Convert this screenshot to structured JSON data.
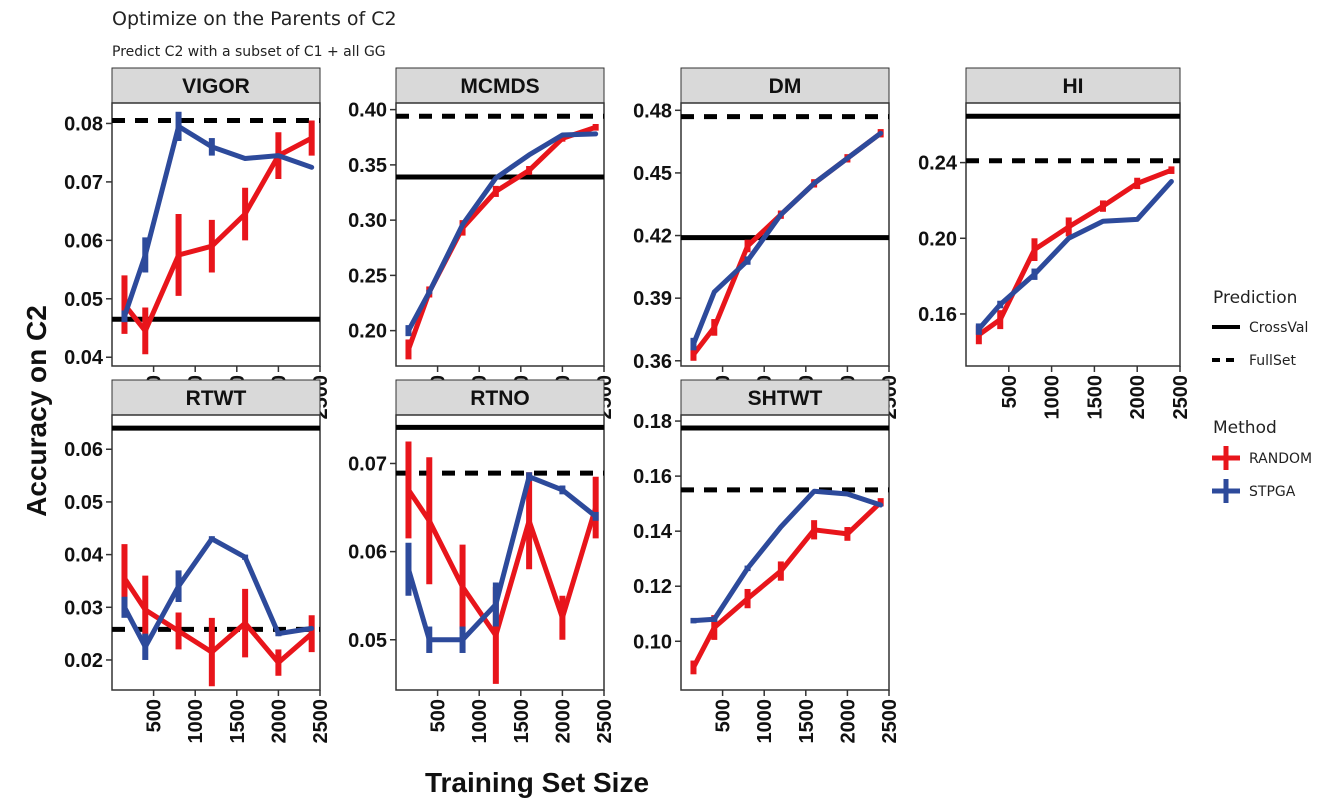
{
  "figure": {
    "title": "Optimize on the Parents of C2",
    "subtitle": "Predict C2 with a subset of C1 + all GG",
    "xlabel": "Training Set Size",
    "ylabel": "Accuracy on C2",
    "legend": {
      "prediction_title": "Prediction",
      "prediction_items": [
        {
          "label": "CrossVal",
          "style": "solid"
        },
        {
          "label": "FullSet",
          "style": "dashed"
        }
      ],
      "method_title": "Method",
      "method_items": [
        {
          "label": "RANDOM",
          "color": "#e8151b"
        },
        {
          "label": "STPGA",
          "color": "#2d4a9b"
        }
      ]
    }
  },
  "chart_data": [
    {
      "type": "line",
      "panel": "VIGOR",
      "x": [
        150,
        400,
        800,
        1200,
        1600,
        2000,
        2400
      ],
      "xlim": [
        0,
        2500
      ],
      "xticks": [
        500,
        1000,
        1500,
        2000,
        2500
      ],
      "ylim": [
        0.0385,
        0.0835
      ],
      "yticks": [
        0.04,
        0.05,
        0.06,
        0.07,
        0.08
      ],
      "ytick_labels": [
        "0.04",
        "0.05",
        "0.06",
        "0.07",
        "0.08"
      ],
      "crossval": 0.0465,
      "fullset": 0.0805,
      "series": [
        {
          "name": "RANDOM",
          "values": [
            0.049,
            0.0445,
            0.0575,
            0.059,
            0.0645,
            0.0745,
            0.0775
          ],
          "err": [
            0.005,
            0.004,
            0.007,
            0.0045,
            0.0045,
            0.004,
            0.003
          ]
        },
        {
          "name": "STPGA",
          "values": [
            0.047,
            0.0575,
            0.0795,
            0.076,
            0.074,
            0.0745,
            0.0725
          ],
          "err": [
            0.001,
            0.003,
            0.0025,
            0.0015,
            0,
            0,
            0
          ]
        }
      ]
    },
    {
      "type": "line",
      "panel": "MCMDS",
      "x": [
        150,
        400,
        800,
        1200,
        1600,
        2000,
        2400
      ],
      "xlim": [
        0,
        2500
      ],
      "xticks": [
        500,
        1000,
        1500,
        2000,
        2500
      ],
      "ylim": [
        0.168,
        0.406
      ],
      "yticks": [
        0.2,
        0.25,
        0.3,
        0.35,
        0.4
      ],
      "ytick_labels": [
        "0.20",
        "0.25",
        "0.30",
        "0.35",
        "0.40"
      ],
      "crossval": 0.339,
      "fullset": 0.394,
      "series": [
        {
          "name": "RANDOM",
          "values": [
            0.183,
            0.235,
            0.293,
            0.326,
            0.345,
            0.374,
            0.384
          ],
          "err": [
            0.009,
            0.005,
            0.007,
            0.005,
            0.004,
            0.003,
            0.003
          ]
        },
        {
          "name": "STPGA",
          "values": [
            0.2,
            0.235,
            0.296,
            0.338,
            0.359,
            0.377,
            0.378
          ],
          "err": [
            0.005,
            0.002,
            0,
            0,
            0,
            0,
            0
          ]
        }
      ]
    },
    {
      "type": "line",
      "panel": "DM",
      "x": [
        150,
        400,
        800,
        1200,
        1600,
        2000,
        2400
      ],
      "xlim": [
        0,
        2500
      ],
      "xticks": [
        500,
        1000,
        1500,
        2000,
        2500
      ],
      "ylim": [
        0.3575,
        0.4835
      ],
      "yticks": [
        0.36,
        0.39,
        0.42,
        0.45,
        0.48
      ],
      "ytick_labels": [
        "0.36",
        "0.39",
        "0.42",
        "0.45",
        "0.48"
      ],
      "crossval": 0.419,
      "fullset": 0.477,
      "series": [
        {
          "name": "RANDOM",
          "values": [
            0.363,
            0.376,
            0.415,
            0.43,
            0.445,
            0.457,
            0.469
          ],
          "err": [
            0.003,
            0.004,
            0.003,
            0.002,
            0.002,
            0.002,
            0.002
          ]
        },
        {
          "name": "STPGA",
          "values": [
            0.368,
            0.393,
            0.408,
            0.43,
            0.445,
            0.457,
            0.469
          ],
          "err": [
            0.003,
            0,
            0.002,
            0,
            0,
            0,
            0
          ]
        }
      ]
    },
    {
      "type": "line",
      "panel": "HI",
      "x": [
        150,
        400,
        800,
        1200,
        1600,
        2000,
        2400
      ],
      "xlim": [
        0,
        2500
      ],
      "xticks": [
        500,
        1000,
        1500,
        2000,
        2500
      ],
      "ylim": [
        0.1325,
        0.2715
      ],
      "yticks": [
        0.16,
        0.2,
        0.24
      ],
      "ytick_labels": [
        "0.16",
        "0.20",
        "0.24"
      ],
      "crossval": 0.2645,
      "fullset": 0.241,
      "series": [
        {
          "name": "RANDOM",
          "values": [
            0.149,
            0.157,
            0.194,
            0.206,
            0.217,
            0.229,
            0.236
          ],
          "err": [
            0.005,
            0.005,
            0.006,
            0.005,
            0.003,
            0.003,
            0.002
          ]
        },
        {
          "name": "STPGA",
          "values": [
            0.152,
            0.165,
            0.181,
            0.2,
            0.209,
            0.21,
            0.23
          ],
          "err": [
            0.003,
            0.002,
            0.003,
            0,
            0,
            0,
            0
          ]
        }
      ]
    },
    {
      "type": "line",
      "panel": "RTWT",
      "x": [
        150,
        400,
        800,
        1200,
        1600,
        2000,
        2400
      ],
      "xlim": [
        0,
        2500
      ],
      "xticks": [
        500,
        1000,
        1500,
        2000,
        2500
      ],
      "ylim": [
        0.0143,
        0.0665
      ],
      "yticks": [
        0.02,
        0.03,
        0.04,
        0.05,
        0.06
      ],
      "ytick_labels": [
        "0.02",
        "0.03",
        "0.04",
        "0.05",
        "0.06"
      ],
      "crossval": 0.064,
      "fullset": 0.0258,
      "series": [
        {
          "name": "RANDOM",
          "values": [
            0.0355,
            0.0295,
            0.0255,
            0.0215,
            0.027,
            0.0195,
            0.025
          ],
          "err": [
            0.0065,
            0.0065,
            0.0035,
            0.0065,
            0.0065,
            0.0025,
            0.0035
          ]
        },
        {
          "name": "STPGA",
          "values": [
            0.03,
            0.0225,
            0.034,
            0.043,
            0.0395,
            0.025,
            0.026
          ],
          "err": [
            0.002,
            0.0025,
            0.003,
            0.0005,
            0.0005,
            0.0005,
            0
          ]
        }
      ]
    },
    {
      "type": "line",
      "panel": "RTNO",
      "x": [
        150,
        400,
        800,
        1200,
        1600,
        2000,
        2400
      ],
      "xlim": [
        0,
        2500
      ],
      "xticks": [
        500,
        1000,
        1500,
        2000,
        2500
      ],
      "ylim": [
        0.0443,
        0.0755
      ],
      "yticks": [
        0.05,
        0.06,
        0.07
      ],
      "ytick_labels": [
        "0.05",
        "0.06",
        "0.07"
      ],
      "crossval": 0.0741,
      "fullset": 0.0689,
      "series": [
        {
          "name": "RANDOM",
          "values": [
            0.067,
            0.0635,
            0.056,
            0.0505,
            0.0635,
            0.0525,
            0.065
          ],
          "err": [
            0.0055,
            0.0072,
            0.0048,
            0.0055,
            0.0055,
            0.0025,
            0.0035
          ]
        },
        {
          "name": "STPGA",
          "values": [
            0.058,
            0.05,
            0.05,
            0.054,
            0.0685,
            0.067,
            0.064
          ],
          "err": [
            0.003,
            0.0015,
            0.0015,
            0.0025,
            0.0005,
            0.0005,
            0.0005
          ]
        }
      ]
    },
    {
      "type": "line",
      "panel": "SHTWT",
      "x": [
        150,
        400,
        800,
        1200,
        1600,
        2000,
        2400
      ],
      "xlim": [
        0,
        2500
      ],
      "xticks": [
        500,
        1000,
        1500,
        2000,
        2500
      ],
      "ylim": [
        0.0823,
        0.1822
      ],
      "yticks": [
        0.1,
        0.12,
        0.14,
        0.16,
        0.18
      ],
      "ytick_labels": [
        "0.10",
        "0.12",
        "0.14",
        "0.16",
        "0.18"
      ],
      "crossval": 0.1775,
      "fullset": 0.155,
      "series": [
        {
          "name": "RANDOM",
          "values": [
            0.0905,
            0.105,
            0.1155,
            0.1255,
            0.1405,
            0.139,
            0.1505
          ],
          "err": [
            0.0025,
            0.0045,
            0.0035,
            0.0035,
            0.0035,
            0.0025,
            0.0015
          ]
        },
        {
          "name": "STPGA",
          "values": [
            0.1075,
            0.108,
            0.1265,
            0.1415,
            0.1545,
            0.1535,
            0.1495
          ],
          "err": [
            0.001,
            0.001,
            0.001,
            0,
            0,
            0,
            0
          ]
        }
      ]
    }
  ]
}
